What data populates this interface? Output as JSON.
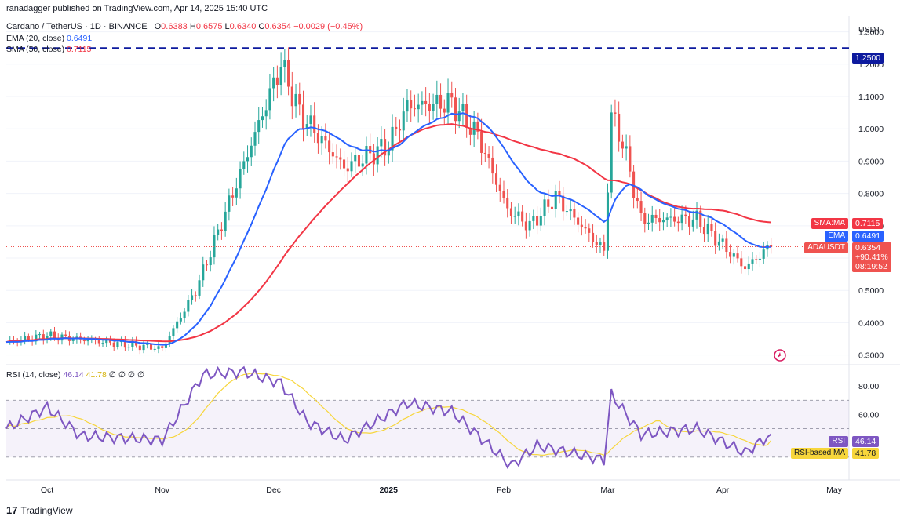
{
  "header": {
    "published": "ranadagger published on TradingView.com, Apr 14, 2025 15:40 UTC",
    "symbol": "Cardano / TetherUS · 1D · BINANCE",
    "ohlc": {
      "o_label": "O",
      "o": "0.6383",
      "h_label": "H",
      "h": "0.6575",
      "l_label": "L",
      "l": "0.6340",
      "c_label": "C",
      "c": "0.6354",
      "change": "−0.0029 (−0.45%)"
    },
    "ema_label": "EMA (20, close)",
    "ema_value": "0.6491",
    "sma_label": "SMA (50, close)",
    "sma_value": "0.7115",
    "rsi_label": "RSI (14, close)",
    "rsi_value": "46.14",
    "rsi_ma_value": "41.78",
    "rsi_extra": "∅ ∅ ∅ ∅"
  },
  "price_axis": {
    "currency": "USDT",
    "ticks": [
      "1.3000",
      "1.2000",
      "1.1000",
      "1.0000",
      "0.9000",
      "0.8000",
      "0.7000",
      "0.6000",
      "0.5000",
      "0.4000",
      "0.3000"
    ],
    "tags": [
      {
        "label": "1.2500",
        "name": "level-tag"
      },
      {
        "label": "0.7115",
        "name": "sma-price-tag",
        "side": "SMA:MA"
      },
      {
        "label": "0.6491",
        "name": "ema-price-tag",
        "side": "EMA"
      },
      {
        "label": "0.6354",
        "name": "last-price-tag",
        "side": "ADAUSDT"
      }
    ],
    "change_pct": "+90.41%",
    "countdown": "08:19:52"
  },
  "rsi_axis": {
    "ticks": [
      "80.00",
      "60.00"
    ],
    "tags": [
      {
        "label": "46.14",
        "side": "RSI"
      },
      {
        "label": "41.78",
        "side": "RSI-based MA"
      }
    ]
  },
  "time_axis": [
    "Oct",
    "Nov",
    "Dec",
    "2025",
    "Feb",
    "Mar",
    "Apr",
    "May"
  ],
  "footer": {
    "brand": "TradingView"
  },
  "colors": {
    "up": "#26a69a",
    "down": "#ef5350",
    "ema": "#2962ff",
    "sma": "#f23645",
    "rsi": "#7e57c2",
    "rsi_ma": "#f7d63b",
    "level": "#0d1a9e"
  },
  "chart_data": {
    "type": "candlestick",
    "title": "Cardano / TetherUS · 1D · BINANCE",
    "y_range": [
      0.27,
      1.35
    ],
    "horizontal_level": 1.25,
    "last_close": 0.6354,
    "anchors": [
      {
        "date": "Sep 20",
        "close": 0.34
      },
      {
        "date": "Oct 1",
        "close": 0.36
      },
      {
        "date": "Nov 1",
        "close": 0.32
      },
      {
        "date": "Nov 10",
        "close": 0.5
      },
      {
        "date": "Nov 20",
        "close": 0.8
      },
      {
        "date": "Dec 3",
        "close": 1.2
      },
      {
        "date": "Dec 8",
        "close": 1.05
      },
      {
        "date": "Dec 20",
        "close": 0.88
      },
      {
        "date": "Jan 1",
        "close": 0.95
      },
      {
        "date": "Jan 6",
        "close": 1.07
      },
      {
        "date": "Jan 18",
        "close": 1.08
      },
      {
        "date": "Jan 25",
        "close": 0.98
      },
      {
        "date": "Feb 2",
        "close": 0.75
      },
      {
        "date": "Feb 8",
        "close": 0.7
      },
      {
        "date": "Feb 15",
        "close": 0.79
      },
      {
        "date": "Feb 28",
        "close": 0.62
      },
      {
        "date": "Mar 2",
        "close": 1.04
      },
      {
        "date": "Mar 5",
        "close": 0.96
      },
      {
        "date": "Mar 10",
        "close": 0.72
      },
      {
        "date": "Mar 25",
        "close": 0.72
      },
      {
        "date": "Apr 7",
        "close": 0.57
      },
      {
        "date": "Apr 10",
        "close": 0.6
      },
      {
        "date": "Apr 14",
        "close": 0.6354
      }
    ],
    "ema20_end": 0.6491,
    "sma50_end": 0.7115,
    "rsi": {
      "range": [
        15,
        95
      ],
      "bands": [
        70,
        30
      ],
      "midline": 50,
      "last": 46.14,
      "ma_last": 41.78,
      "anchors": [
        {
          "date": "Sep 20",
          "value": 50
        },
        {
          "date": "Oct 1",
          "value": 65
        },
        {
          "date": "Oct 10",
          "value": 45
        },
        {
          "date": "Nov 1",
          "value": 42
        },
        {
          "date": "Nov 12",
          "value": 88
        },
        {
          "date": "Nov 23",
          "value": 90
        },
        {
          "date": "Dec 3",
          "value": 82
        },
        {
          "date": "Dec 10",
          "value": 55
        },
        {
          "date": "Dec 20",
          "value": 42
        },
        {
          "date": "Jan 6",
          "value": 68
        },
        {
          "date": "Jan 18",
          "value": 62
        },
        {
          "date": "Feb 3",
          "value": 24
        },
        {
          "date": "Feb 10",
          "value": 38
        },
        {
          "date": "Feb 28",
          "value": 28
        },
        {
          "date": "Mar 2",
          "value": 74
        },
        {
          "date": "Mar 10",
          "value": 46
        },
        {
          "date": "Mar 25",
          "value": 50
        },
        {
          "date": "Apr 7",
          "value": 33
        },
        {
          "date": "Apr 14",
          "value": 46.14
        }
      ]
    }
  }
}
